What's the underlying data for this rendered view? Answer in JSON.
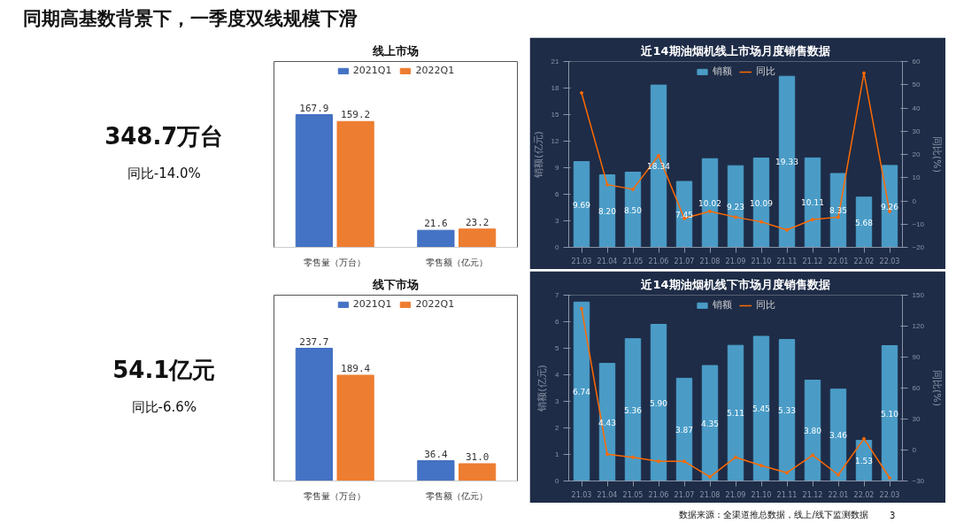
{
  "chart_data": [
    {
      "type": "other",
      "title": "同期高基数背景下，一季度双线规模下滑",
      "annotations": [
        "348.7万台",
        "同比-14.0%"
      ]
    },
    {
      "type": "bar",
      "title": "线上市场",
      "categories": [
        "零售量（万台）",
        "零售额（亿元）"
      ],
      "legend": "top",
      "series": [
        {
          "name": "2021Q1",
          "color": "#4472c4",
          "values": [
            167.9,
            21.6
          ],
          "value_labels": [
            "167.9",
            "21.6"
          ]
        },
        {
          "name": "2022Q1",
          "color": "#ed7d31",
          "values": [
            159.2,
            23.2
          ],
          "value_labels": [
            "159.2",
            "23.2"
          ]
        }
      ]
    },
    {
      "type": "bar",
      "title": "近14期油烟机线上市场月度销售数据",
      "ylabel": "销额(亿元)",
      "y2label": "同比(%)",
      "legend": "top",
      "marker": "circle",
      "categories": [
        "21.03",
        "21.04",
        "21.05",
        "21.06",
        "21.07",
        "21.08",
        "21.09",
        "21.10",
        "21.11",
        "21.12",
        "22.01",
        "22.02",
        "22.03"
      ],
      "ylim": [
        0,
        21
      ],
      "yticks": [
        0,
        3,
        6,
        9,
        12,
        15,
        18,
        21
      ],
      "y2lim": [
        -20,
        60
      ],
      "y2ticks": [
        -20,
        -10,
        0,
        10,
        20,
        30,
        40,
        50,
        60
      ],
      "series": [
        {
          "name": "销额",
          "color": "#4a9cc7",
          "values": [
            9.69,
            8.2,
            8.5,
            18.34,
            7.45,
            10.02,
            9.23,
            10.09,
            19.33,
            10.11,
            8.35,
            5.68,
            9.26
          ],
          "value_labels": [
            "9.69",
            "8.20",
            "8.50",
            "18.34",
            "7.45",
            "10.02",
            "9.23",
            "10.09",
            "19.33",
            "10.11",
            "8.35",
            "5.68",
            "9.26"
          ]
        },
        {
          "name": "同比",
          "type": "line",
          "axis": "y2",
          "color": "#ff6a00",
          "values": [
            46.5,
            7,
            5,
            19.5,
            -7.5,
            -4.5,
            -7,
            -9,
            -12.5,
            -8,
            -7,
            55,
            -4.5
          ]
        }
      ]
    },
    {
      "type": "other",
      "annotations": [
        "54.1亿元",
        "同比-6.6%"
      ]
    },
    {
      "type": "bar",
      "title": "线下市场",
      "categories": [
        "零售量（万台）",
        "零售额（亿元）"
      ],
      "legend": "top",
      "series": [
        {
          "name": "2021Q1",
          "color": "#4472c4",
          "values": [
            237.7,
            36.4
          ],
          "value_labels": [
            "237.7",
            "36.4"
          ]
        },
        {
          "name": "2022Q1",
          "color": "#ed7d31",
          "values": [
            189.4,
            31.0
          ],
          "value_labels": [
            "189.4",
            "31.0"
          ]
        }
      ]
    },
    {
      "type": "bar",
      "title": "近14期油烟机线下市场月度销售数据",
      "ylabel": "销额(亿元)",
      "y2label": "同比(%)",
      "legend": "top",
      "marker": "circle",
      "categories": [
        "21.03",
        "21.04",
        "21.05",
        "21.06",
        "21.07",
        "21.08",
        "21.09",
        "21.10",
        "21.11",
        "21.12",
        "22.01",
        "22.02",
        "22.03"
      ],
      "ylim": [
        0,
        7
      ],
      "yticks": [
        0,
        1,
        2,
        3,
        4,
        5,
        6,
        7
      ],
      "y2lim": [
        -30,
        150
      ],
      "y2ticks": [
        -30,
        0,
        30,
        60,
        90,
        120,
        150
      ],
      "series": [
        {
          "name": "销额",
          "color": "#4a9cc7",
          "values": [
            6.74,
            4.43,
            5.36,
            5.9,
            3.87,
            4.35,
            5.11,
            5.45,
            5.33,
            3.8,
            3.46,
            1.53,
            5.1
          ],
          "value_labels": [
            "6.74",
            "4.43",
            "5.36",
            "5.90",
            "3.87",
            "4.35",
            "5.11",
            "5.45",
            "5.33",
            "3.80",
            "3.46",
            "1.53",
            "5.10"
          ]
        },
        {
          "name": "同比",
          "type": "line",
          "axis": "y2",
          "color": "#ff6a00",
          "values": [
            137,
            -4,
            -7,
            -11,
            -11,
            -26,
            -7,
            -15,
            -22,
            -5,
            -24,
            11,
            -27
          ]
        }
      ],
      "annotations": [
        "数据来源：全渠道推总数据，线上/线下监测数据",
        "3"
      ]
    }
  ]
}
